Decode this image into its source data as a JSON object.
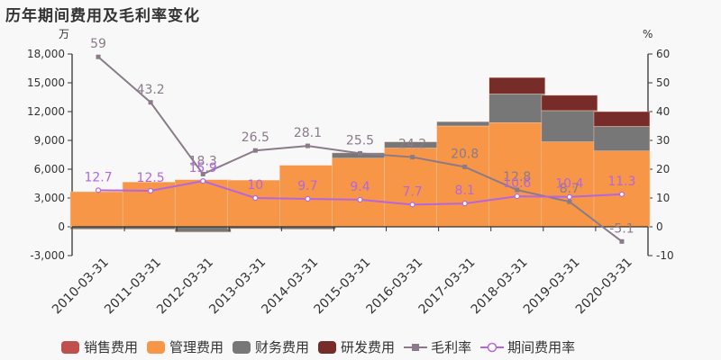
{
  "title": "历年期间费用及毛利率变化",
  "chart_data": {
    "type": "bar",
    "title": "历年期间费用及毛利率变化",
    "categories": [
      "2010-03-31",
      "2011-03-31",
      "2012-03-31",
      "2013-03-31",
      "2014-03-31",
      "2015-03-31",
      "2016-03-31",
      "2017-03-31",
      "2018-03-31",
      "2019-03-31",
      "2020-03-31"
    ],
    "y_left": {
      "unit": "万",
      "ticks": [
        "18,000",
        "15,000",
        "12,000",
        "9,000",
        "6,000",
        "3,000",
        "0",
        "-3,000"
      ],
      "range": [
        -3000,
        18000
      ]
    },
    "y_right": {
      "unit": "%",
      "ticks": [
        "60",
        "50",
        "40",
        "30",
        "20",
        "10",
        "0",
        "-10"
      ],
      "range": [
        -10,
        60
      ]
    },
    "series": [
      {
        "name": "销售费用",
        "kind": "stacked-bar",
        "color": "#c0504d",
        "values": [
          0,
          0,
          0,
          0,
          0,
          0,
          0,
          0,
          0,
          0,
          0
        ]
      },
      {
        "name": "管理费用",
        "kind": "stacked-bar",
        "color": "#f79646",
        "values": [
          3650,
          4650,
          4900,
          4850,
          6400,
          7150,
          8200,
          10500,
          10850,
          8850,
          7900
        ]
      },
      {
        "name": "财务费用",
        "kind": "stacked-bar",
        "color": "#777777",
        "values": [
          -250,
          -250,
          -550,
          -200,
          -250,
          550,
          650,
          450,
          3000,
          3250,
          2550
        ]
      },
      {
        "name": "研发费用",
        "kind": "stacked-bar",
        "color": "#772c2a",
        "values": [
          0,
          0,
          0,
          0,
          0,
          0,
          0,
          0,
          1700,
          1600,
          1550
        ]
      },
      {
        "name": "毛利率",
        "kind": "line",
        "axis": "right",
        "color": "#8a7a8a",
        "values": [
          59,
          43.2,
          18.3,
          26.5,
          28.1,
          25.5,
          24.2,
          20.8,
          12.8,
          8.7,
          -5.1
        ]
      },
      {
        "name": "期间费用率",
        "kind": "line",
        "axis": "right",
        "color": "#b466e0",
        "values": [
          12.7,
          12.5,
          15.9,
          10,
          9.7,
          9.4,
          7.7,
          8.1,
          10.6,
          10.4,
          11.3
        ]
      }
    ],
    "legend_position": "bottom",
    "grid": false
  },
  "legend": {
    "items": [
      {
        "label": "销售费用",
        "color": "#c0504d"
      },
      {
        "label": "管理费用",
        "color": "#f79646"
      },
      {
        "label": "财务费用",
        "color": "#777777"
      },
      {
        "label": "研发费用",
        "color": "#772c2a"
      },
      {
        "label": "毛利率",
        "color": "#8a7a8a"
      },
      {
        "label": "期间费用率",
        "color": "#b466e0"
      }
    ]
  }
}
